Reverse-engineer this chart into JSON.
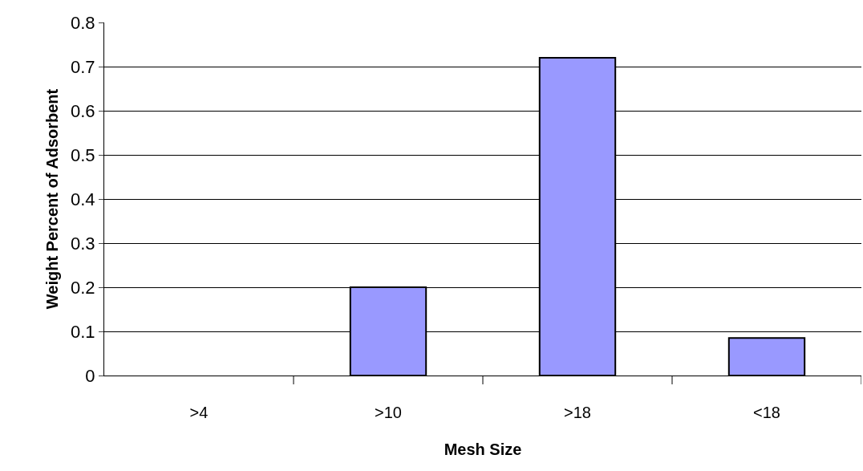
{
  "chart_data": {
    "type": "bar",
    "xlabel": "Mesh Size",
    "ylabel": "Weight Percent of Adsorbent",
    "categories": [
      ">4",
      ">10",
      ">18",
      "<18"
    ],
    "values": [
      0,
      0.2,
      0.72,
      0.085
    ],
    "color": "#9999ff",
    "ylim": [
      0,
      0.8
    ],
    "yticks": [
      0,
      0.1,
      0.2,
      0.3,
      0.4,
      0.5,
      0.6,
      0.7,
      0.8
    ],
    "grid": "y"
  }
}
